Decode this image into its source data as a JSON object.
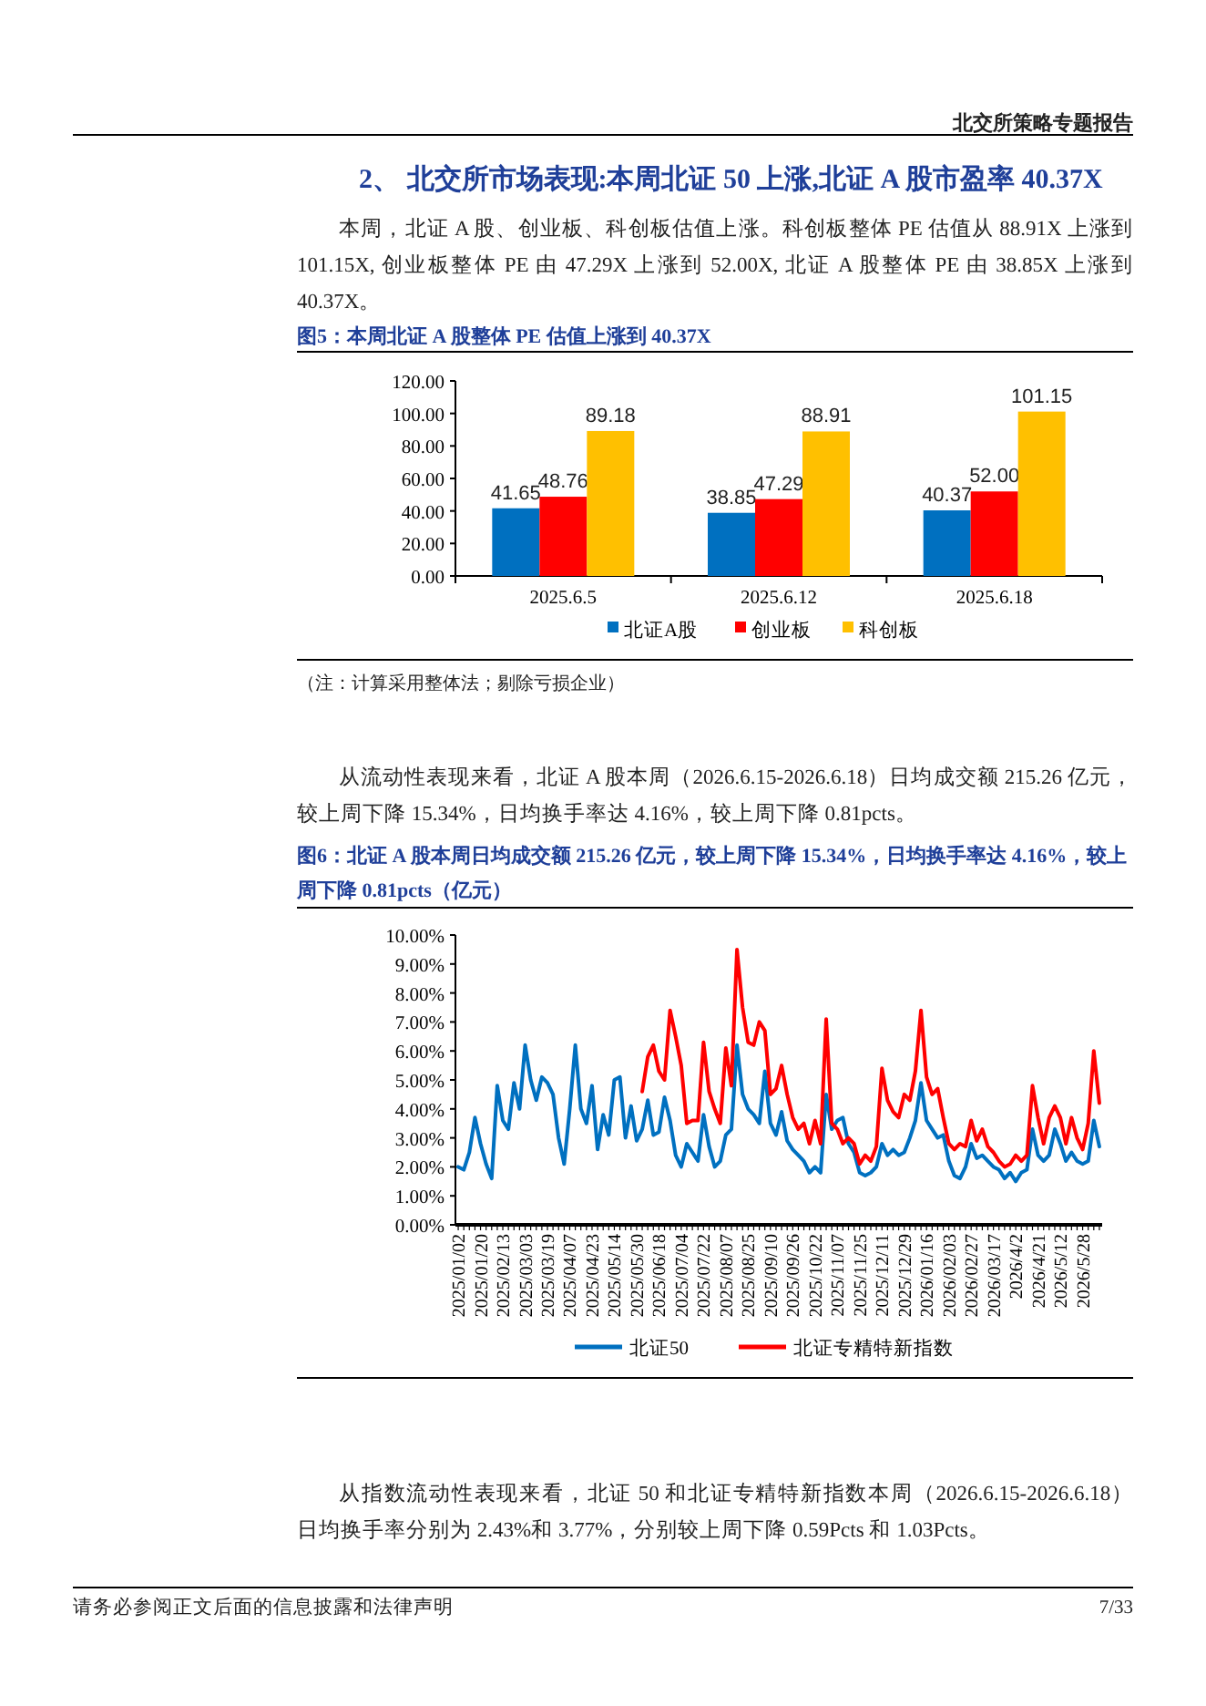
{
  "chart_data": [
    {
      "type": "bar",
      "title": "图5：本周北证 A 股整体 PE 估值上涨到 40.37X",
      "categories": [
        "2025.6.5",
        "2025.6.12",
        "2025.6.18"
      ],
      "series": [
        {
          "name": "北证A股",
          "color": "#0070c0",
          "values": [
            41.65,
            38.85,
            40.37
          ],
          "value_labels": [
            "41.65",
            "38.85",
            "40.37"
          ]
        },
        {
          "name": "创业板",
          "color": "#ff0000",
          "values": [
            48.76,
            47.29,
            52.0
          ],
          "value_labels": [
            "48.76",
            "47.29",
            "52.00"
          ]
        },
        {
          "name": "科创板",
          "color": "#ffc000",
          "values": [
            89.18,
            88.91,
            101.15
          ],
          "value_labels": [
            "89.18",
            "88.91",
            "101.15"
          ]
        }
      ],
      "ylim": [
        0,
        120
      ],
      "yticks": [
        {
          "value": 0,
          "label": "0.00"
        },
        {
          "value": 20,
          "label": "20.00"
        },
        {
          "value": 40,
          "label": "40.00"
        },
        {
          "value": 60,
          "label": "60.00"
        },
        {
          "value": 80,
          "label": "80.00"
        },
        {
          "value": 100,
          "label": "100.00"
        },
        {
          "value": 120,
          "label": "120.00"
        }
      ],
      "legend": "bottom",
      "annotations": [
        "北交所策略专题报告",
        "2、 北交所市场表现:本周北证 50 上涨,北证 A 股市盈率 40.37X",
        "本周，北证 A 股、创业板、科创板估值上涨。科创板整体 PE 估值从 88.91X 上涨到 101.15X, 创业板整体 PE 由 47.29X 上涨到 52.00X, 北证 A 股整体 PE 由 38.85X 上涨到 40.37X。",
        "（注：计算采用整体法；剔除亏损企业）"
      ]
    },
    {
      "type": "line",
      "title": "图6：北证 A 股本周日均成交额 215.26 亿元，较上周下降 15.34%，日均换手率达 4.16%，较上周下降 0.81pcts（亿元）",
      "categories": [
        "2025/01/02",
        null,
        null,
        null,
        "2025/01/20",
        null,
        null,
        null,
        "2025/02/13",
        null,
        null,
        null,
        "2025/03/03",
        null,
        null,
        null,
        "2025/03/19",
        null,
        null,
        null,
        "2025/04/07",
        null,
        null,
        null,
        "2025/04/23",
        null,
        null,
        null,
        "2025/05/14",
        null,
        null,
        null,
        "2025/05/30",
        null,
        null,
        null,
        "2025/06/18",
        null,
        null,
        null,
        "2025/07/04",
        null,
        null,
        null,
        "2025/07/22",
        null,
        null,
        null,
        "2025/08/07",
        null,
        null,
        null,
        "2025/08/25",
        null,
        null,
        null,
        "2025/09/10",
        null,
        null,
        null,
        "2025/09/26",
        null,
        null,
        null,
        "2025/10/22",
        null,
        null,
        null,
        "2025/11/07",
        null,
        null,
        null,
        "2025/11/25",
        null,
        null,
        null,
        "2025/12/11",
        null,
        null,
        null,
        "2025/12/29",
        null,
        null,
        null,
        "2026/01/16",
        null,
        null,
        null,
        "2026/02/03",
        null,
        null,
        null,
        "2026/02/27",
        null,
        null,
        null,
        "2026/03/17",
        null,
        null,
        null,
        "2026/4/2",
        null,
        null,
        null,
        "2026/4/21",
        null,
        null,
        null,
        "2026/5/12",
        null,
        null,
        null,
        "2026/5/28",
        null,
        null,
        null
      ],
      "series": [
        {
          "name": "北证50",
          "color": "#0070c0",
          "values": [
            2.0,
            1.9,
            2.5,
            3.7,
            2.8,
            2.1,
            1.6,
            4.8,
            3.6,
            3.3,
            4.9,
            4.0,
            6.2,
            5.0,
            4.3,
            5.1,
            4.9,
            4.5,
            3.0,
            2.1,
            4.0,
            6.2,
            4.0,
            3.5,
            4.8,
            2.6,
            3.8,
            3.1,
            5.0,
            5.1,
            3.0,
            4.1,
            2.9,
            3.3,
            4.3,
            3.1,
            3.2,
            4.4,
            3.6,
            2.4,
            2.0,
            2.8,
            2.5,
            2.2,
            3.8,
            2.7,
            2.0,
            2.2,
            3.1,
            3.3,
            6.2,
            4.5,
            4.0,
            3.8,
            3.5,
            5.3,
            3.5,
            3.1,
            3.9,
            2.9,
            2.6,
            2.4,
            2.2,
            1.8,
            2.0,
            1.8,
            4.5,
            3.3,
            3.6,
            3.7,
            2.8,
            2.5,
            1.8,
            1.7,
            1.8,
            2.0,
            2.8,
            2.4,
            2.6,
            2.4,
            2.5,
            3.0,
            3.6,
            4.9,
            3.6,
            3.3,
            3.0,
            3.1,
            2.2,
            1.7,
            1.6,
            2.0,
            2.8,
            2.3,
            2.4,
            2.2,
            2.0,
            1.9,
            1.6,
            1.8,
            1.5,
            1.8,
            1.9,
            3.3,
            2.4,
            2.2,
            2.4,
            3.3,
            2.8,
            2.2,
            2.5,
            2.2,
            2.1,
            2.2,
            3.6,
            2.7
          ]
        },
        {
          "name": "北证专精特新指数",
          "color": "#ff0000",
          "values": [
            null,
            null,
            null,
            null,
            null,
            null,
            null,
            null,
            null,
            null,
            null,
            null,
            null,
            null,
            null,
            null,
            null,
            null,
            null,
            null,
            null,
            null,
            null,
            null,
            null,
            null,
            null,
            null,
            null,
            null,
            null,
            null,
            null,
            4.6,
            5.8,
            6.2,
            5.3,
            5.0,
            7.4,
            6.5,
            5.5,
            3.5,
            3.6,
            3.6,
            6.3,
            4.6,
            4.0,
            3.5,
            6.1,
            4.8,
            9.5,
            7.5,
            6.3,
            6.2,
            7.0,
            6.7,
            4.5,
            4.7,
            5.5,
            4.5,
            3.7,
            3.3,
            3.5,
            2.8,
            3.6,
            2.8,
            7.1,
            3.5,
            3.3,
            2.8,
            3.0,
            2.8,
            2.1,
            2.4,
            2.2,
            2.7,
            5.4,
            4.3,
            3.9,
            3.7,
            4.5,
            4.3,
            5.3,
            7.4,
            5.1,
            4.5,
            4.7,
            3.7,
            2.8,
            2.6,
            2.8,
            2.7,
            3.6,
            2.9,
            3.3,
            2.7,
            2.5,
            2.2,
            2.0,
            2.1,
            2.4,
            2.2,
            2.4,
            4.8,
            3.7,
            2.8,
            3.7,
            4.1,
            3.7,
            2.8,
            3.7,
            3.0,
            2.6,
            3.5,
            6.0,
            4.2
          ]
        }
      ],
      "ylim": [
        0,
        10
      ],
      "yticks": [
        {
          "value": 0,
          "label": "0.00%"
        },
        {
          "value": 1,
          "label": "1.00%"
        },
        {
          "value": 2,
          "label": "2.00%"
        },
        {
          "value": 3,
          "label": "3.00%"
        },
        {
          "value": 4,
          "label": "4.00%"
        },
        {
          "value": 5,
          "label": "5.00%"
        },
        {
          "value": 6,
          "label": "6.00%"
        },
        {
          "value": 7,
          "label": "7.00%"
        },
        {
          "value": 8,
          "label": "8.00%"
        },
        {
          "value": 9,
          "label": "9.00%"
        },
        {
          "value": 10,
          "label": "10.00%"
        }
      ],
      "legend": "bottom",
      "line_style": "solid",
      "annotations": [
        "从流动性表现来看，北证 A 股本周（2026.6.15-2026.6.18）日均成交额 215.26 亿元，较上周下降 15.34%，日均换手率达 4.16%，较上周下降 0.81pcts。",
        "从指数流动性表现来看，北证 50 和北证专精特新指数本周（2026.6.15-2026.6.18）日均换手率分别为 2.43%和 3.77%，分别较上周下降 0.59Pcts 和 1.03Pcts。",
        "请务必参阅正文后面的信息披露和法律声明",
        "7/33"
      ]
    }
  ]
}
